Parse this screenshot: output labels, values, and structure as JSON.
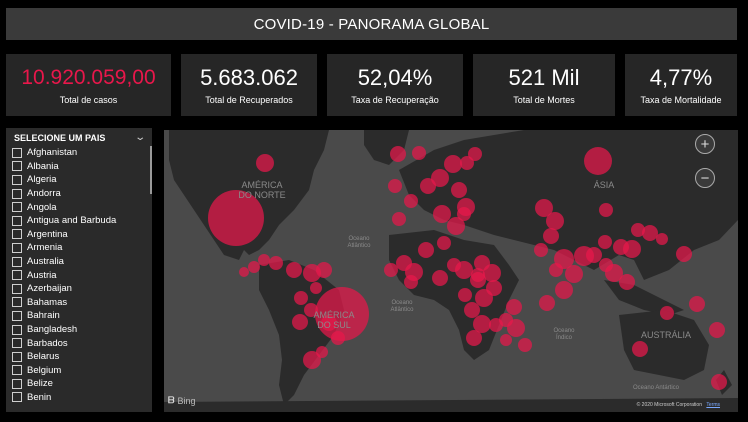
{
  "header": {
    "title": "COVID-19 - PANORAMA GLOBAL"
  },
  "kpis": [
    {
      "value": "10.920.059,00",
      "label": "Total de casos"
    },
    {
      "value": "5.683.062",
      "label": "Total de Recuperados"
    },
    {
      "value": "52,04%",
      "label": "Taxa de Recuperação"
    },
    {
      "value": "521 Mil",
      "label": "Total de Mortes"
    },
    {
      "value": "4,77%",
      "label": "Taxa de Mortalidade"
    }
  ],
  "colors": {
    "accent": "#e8174b",
    "bubble": "#e8174b",
    "land": "#2b2b2b",
    "ocean": "#4a4a4a"
  },
  "slicer": {
    "title": "SELECIONE UM PAIS",
    "items": [
      "Afghanistan",
      "Albania",
      "Algeria",
      "Andorra",
      "Angola",
      "Antigua and Barbuda",
      "Argentina",
      "Armenia",
      "Australia",
      "Austria",
      "Azerbaijan",
      "Bahamas",
      "Bahrain",
      "Bangladesh",
      "Barbados",
      "Belarus",
      "Belgium",
      "Belize",
      "Benin"
    ]
  },
  "map": {
    "zoom_in": "+",
    "zoom_out": "−",
    "labels": {
      "north_america": "AMÉRICA\nDO NORTE",
      "south_america": "AMÉRICA\nDO SUL",
      "asia": "ÁSIA",
      "australia": "AUSTRÁLIA",
      "north_atlantic": "Oceano\nAtlântico",
      "south_atlantic": "Oceano\nAtlântico",
      "indian": "Oceano\nÍndico",
      "southern": "Oceano Antártico"
    },
    "bing": "Bing",
    "copyright": "© 2020 Microsoft Corporation",
    "terms": "Terms"
  }
}
